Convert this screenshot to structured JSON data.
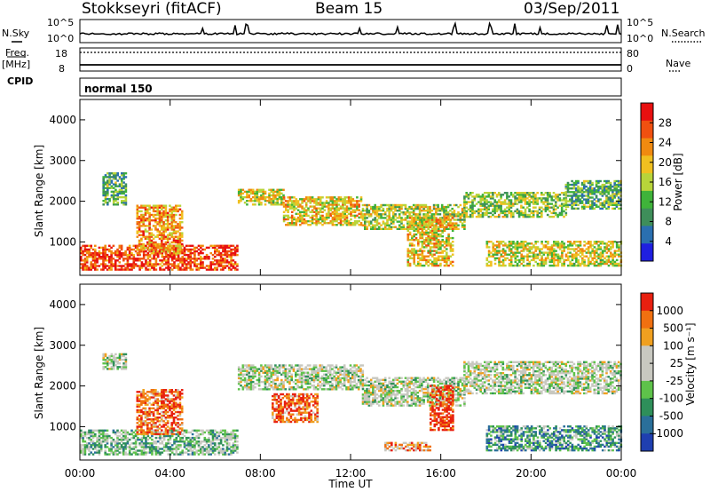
{
  "header": {
    "station": "Stokkseyri (fitACF)",
    "beam": "Beam 15",
    "date": "03/Sep/2011"
  },
  "side_labels": {
    "nsky": "N.Sky",
    "freq": "Freq.",
    "mhz": "[MHz]",
    "cpid": "CPID",
    "nsearch": "N.Search",
    "nave": "Nave",
    "cpid_value": "normal 150"
  },
  "ticks": {
    "nsky_top": "10^5",
    "nsky_bottom": "10^0",
    "freq_top": "18",
    "freq_bottom": "8",
    "nave_top": "80",
    "nave_bottom": "0"
  },
  "colors": {
    "power_scale": [
      "#1f1fe0",
      "#2a6fb0",
      "#3e8e5a",
      "#3fb33a",
      "#b8d43a",
      "#f0c020",
      "#f08a10",
      "#f05010",
      "#e81010"
    ],
    "velocity_scale": [
      "#1f3fb0",
      "#2a6f9a",
      "#2e8f5a",
      "#5ec24a",
      "#c8c8c0",
      "#c8c8c0",
      "#f0a020",
      "#f07010",
      "#e82010"
    ]
  },
  "chart_data": [
    {
      "type": "heatmap",
      "name": "power",
      "ylabel": "Slant Range [km]",
      "yticks": [
        "1000",
        "2000",
        "3000",
        "4000"
      ],
      "ylim": [
        180,
        4500
      ],
      "colorbar_label": "Power [dB]",
      "colorbar_ticks": [
        "28",
        "24",
        "20",
        "16",
        "12",
        "8",
        "4"
      ],
      "colorbar_range": [
        0,
        32
      ],
      "echo_regions": [
        {
          "t0": 0.0,
          "t1": 7.0,
          "r0": 300,
          "r1": 900,
          "level": 0.85
        },
        {
          "t0": 2.5,
          "t1": 4.5,
          "r0": 700,
          "r1": 1900,
          "level": 0.7
        },
        {
          "t0": 1.0,
          "t1": 2.0,
          "r0": 1900,
          "r1": 2700,
          "level": 0.35
        },
        {
          "t0": 7.0,
          "t1": 9.0,
          "r0": 1900,
          "r1": 2300,
          "level": 0.55
        },
        {
          "t0": 9.0,
          "t1": 12.5,
          "r0": 1400,
          "r1": 2100,
          "level": 0.6
        },
        {
          "t0": 12.5,
          "t1": 17.0,
          "r0": 1300,
          "r1": 1900,
          "level": 0.5
        },
        {
          "t0": 17.0,
          "t1": 21.5,
          "r0": 1600,
          "r1": 2200,
          "level": 0.45
        },
        {
          "t0": 21.5,
          "t1": 24.0,
          "r0": 1800,
          "r1": 2500,
          "level": 0.35
        },
        {
          "t0": 18.0,
          "t1": 24.0,
          "r0": 400,
          "r1": 1000,
          "level": 0.55
        },
        {
          "t0": 14.5,
          "t1": 16.5,
          "r0": 400,
          "r1": 1600,
          "level": 0.6
        }
      ]
    },
    {
      "type": "heatmap",
      "name": "velocity",
      "ylabel": "Slant Range [km]",
      "yticks": [
        "1000",
        "2000",
        "3000",
        "4000"
      ],
      "ylim": [
        180,
        4500
      ],
      "colorbar_label": "Velocity [m s⁻¹]",
      "colorbar_ticks": [
        "1000",
        "500",
        "100",
        "25",
        "-25",
        "-100",
        "-500",
        "-1000"
      ],
      "colorbar_range": [
        -1200,
        1200
      ],
      "xlabel": "Time UT",
      "xticks": [
        "00:00",
        "04:00",
        "08:00",
        "12:00",
        "16:00",
        "20:00",
        "00:00"
      ],
      "xlim": [
        0,
        24
      ],
      "echo_regions": [
        {
          "t0": 0.0,
          "t1": 7.0,
          "r0": 300,
          "r1": 900,
          "level": 0.4
        },
        {
          "t0": 2.5,
          "t1": 4.5,
          "r0": 800,
          "r1": 1900,
          "level": 0.85
        },
        {
          "t0": 1.0,
          "t1": 2.0,
          "r0": 2400,
          "r1": 2800,
          "level": 0.5
        },
        {
          "t0": 7.0,
          "t1": 12.5,
          "r0": 1900,
          "r1": 2500,
          "level": 0.5
        },
        {
          "t0": 8.5,
          "t1": 10.5,
          "r0": 1100,
          "r1": 1800,
          "level": 0.85
        },
        {
          "t0": 12.5,
          "t1": 17.0,
          "r0": 1500,
          "r1": 2200,
          "level": 0.5
        },
        {
          "t0": 15.5,
          "t1": 16.5,
          "r0": 900,
          "r1": 2000,
          "level": 0.95
        },
        {
          "t0": 17.0,
          "t1": 24.0,
          "r0": 1800,
          "r1": 2600,
          "level": 0.5
        },
        {
          "t0": 18.0,
          "t1": 24.0,
          "r0": 400,
          "r1": 1000,
          "level": 0.3
        },
        {
          "t0": 13.5,
          "t1": 15.5,
          "r0": 400,
          "r1": 600,
          "level": 0.75
        }
      ]
    }
  ]
}
